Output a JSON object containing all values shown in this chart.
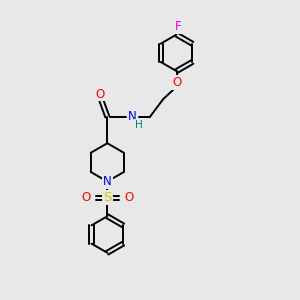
{
  "background_color": "#e8e8e8",
  "bond_color": "#000000",
  "figsize": [
    3.0,
    3.0
  ],
  "dpi": 100,
  "atom_colors": {
    "O": "#ff0000",
    "N": "#0000ee",
    "S": "#cccc00",
    "F": "#ee00ee",
    "H": "#008080",
    "C": "#000000"
  },
  "lw": 1.4,
  "ring_r": 0.62,
  "pip_r": 0.65
}
